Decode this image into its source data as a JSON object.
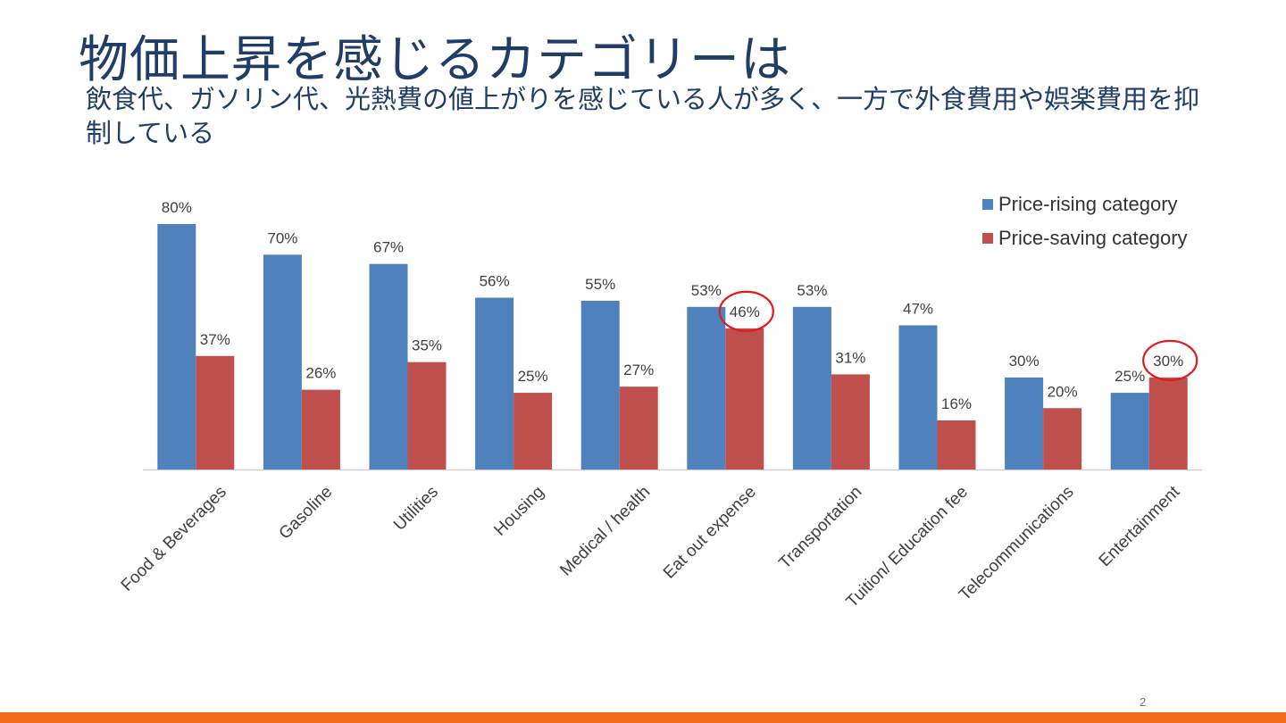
{
  "slide": {
    "title": "物価上昇を感じるカテゴリーは",
    "subtitle": "飲食代、ガソリン代、光熱費の値上がりを感じている人が多く、一方で外食費用や娯楽費用を抑制している",
    "page_number": "2"
  },
  "colors": {
    "price_rising": "#4f81bd",
    "price_saving": "#c0504d",
    "highlight_circle": "#e31b1b",
    "bottom_bar": "#f26b1a"
  },
  "chart_data": {
    "type": "bar",
    "categories": [
      "Food & Beverages",
      "Gasoline",
      "Utilities",
      "Housing",
      "Medical / health",
      "Eat out expense",
      "Transportation",
      "Tuition/ Education fee",
      "Telecommunications",
      "Entertainment"
    ],
    "series": [
      {
        "name": "Price-rising category",
        "values": [
          80,
          70,
          67,
          56,
          55,
          53,
          53,
          47,
          30,
          25
        ],
        "labels": [
          "80%",
          "70%",
          "67%",
          "56%",
          "55%",
          "53%",
          "53%",
          "47%",
          "30%",
          "25%"
        ]
      },
      {
        "name": "Price-saving category",
        "values": [
          37,
          26,
          35,
          25,
          27,
          46,
          31,
          16,
          20,
          30
        ],
        "labels": [
          "37%",
          "26%",
          "35%",
          "25%",
          "27%",
          "46%",
          "31%",
          "16%",
          "20%",
          "30%"
        ]
      }
    ],
    "ylim": [
      0,
      80
    ],
    "unit": "%",
    "grid": false,
    "legend_position": "top-right",
    "highlighted": [
      {
        "series": "Price-saving category",
        "category": "Eat out expense"
      },
      {
        "series": "Price-saving category",
        "category": "Entertainment"
      }
    ]
  }
}
